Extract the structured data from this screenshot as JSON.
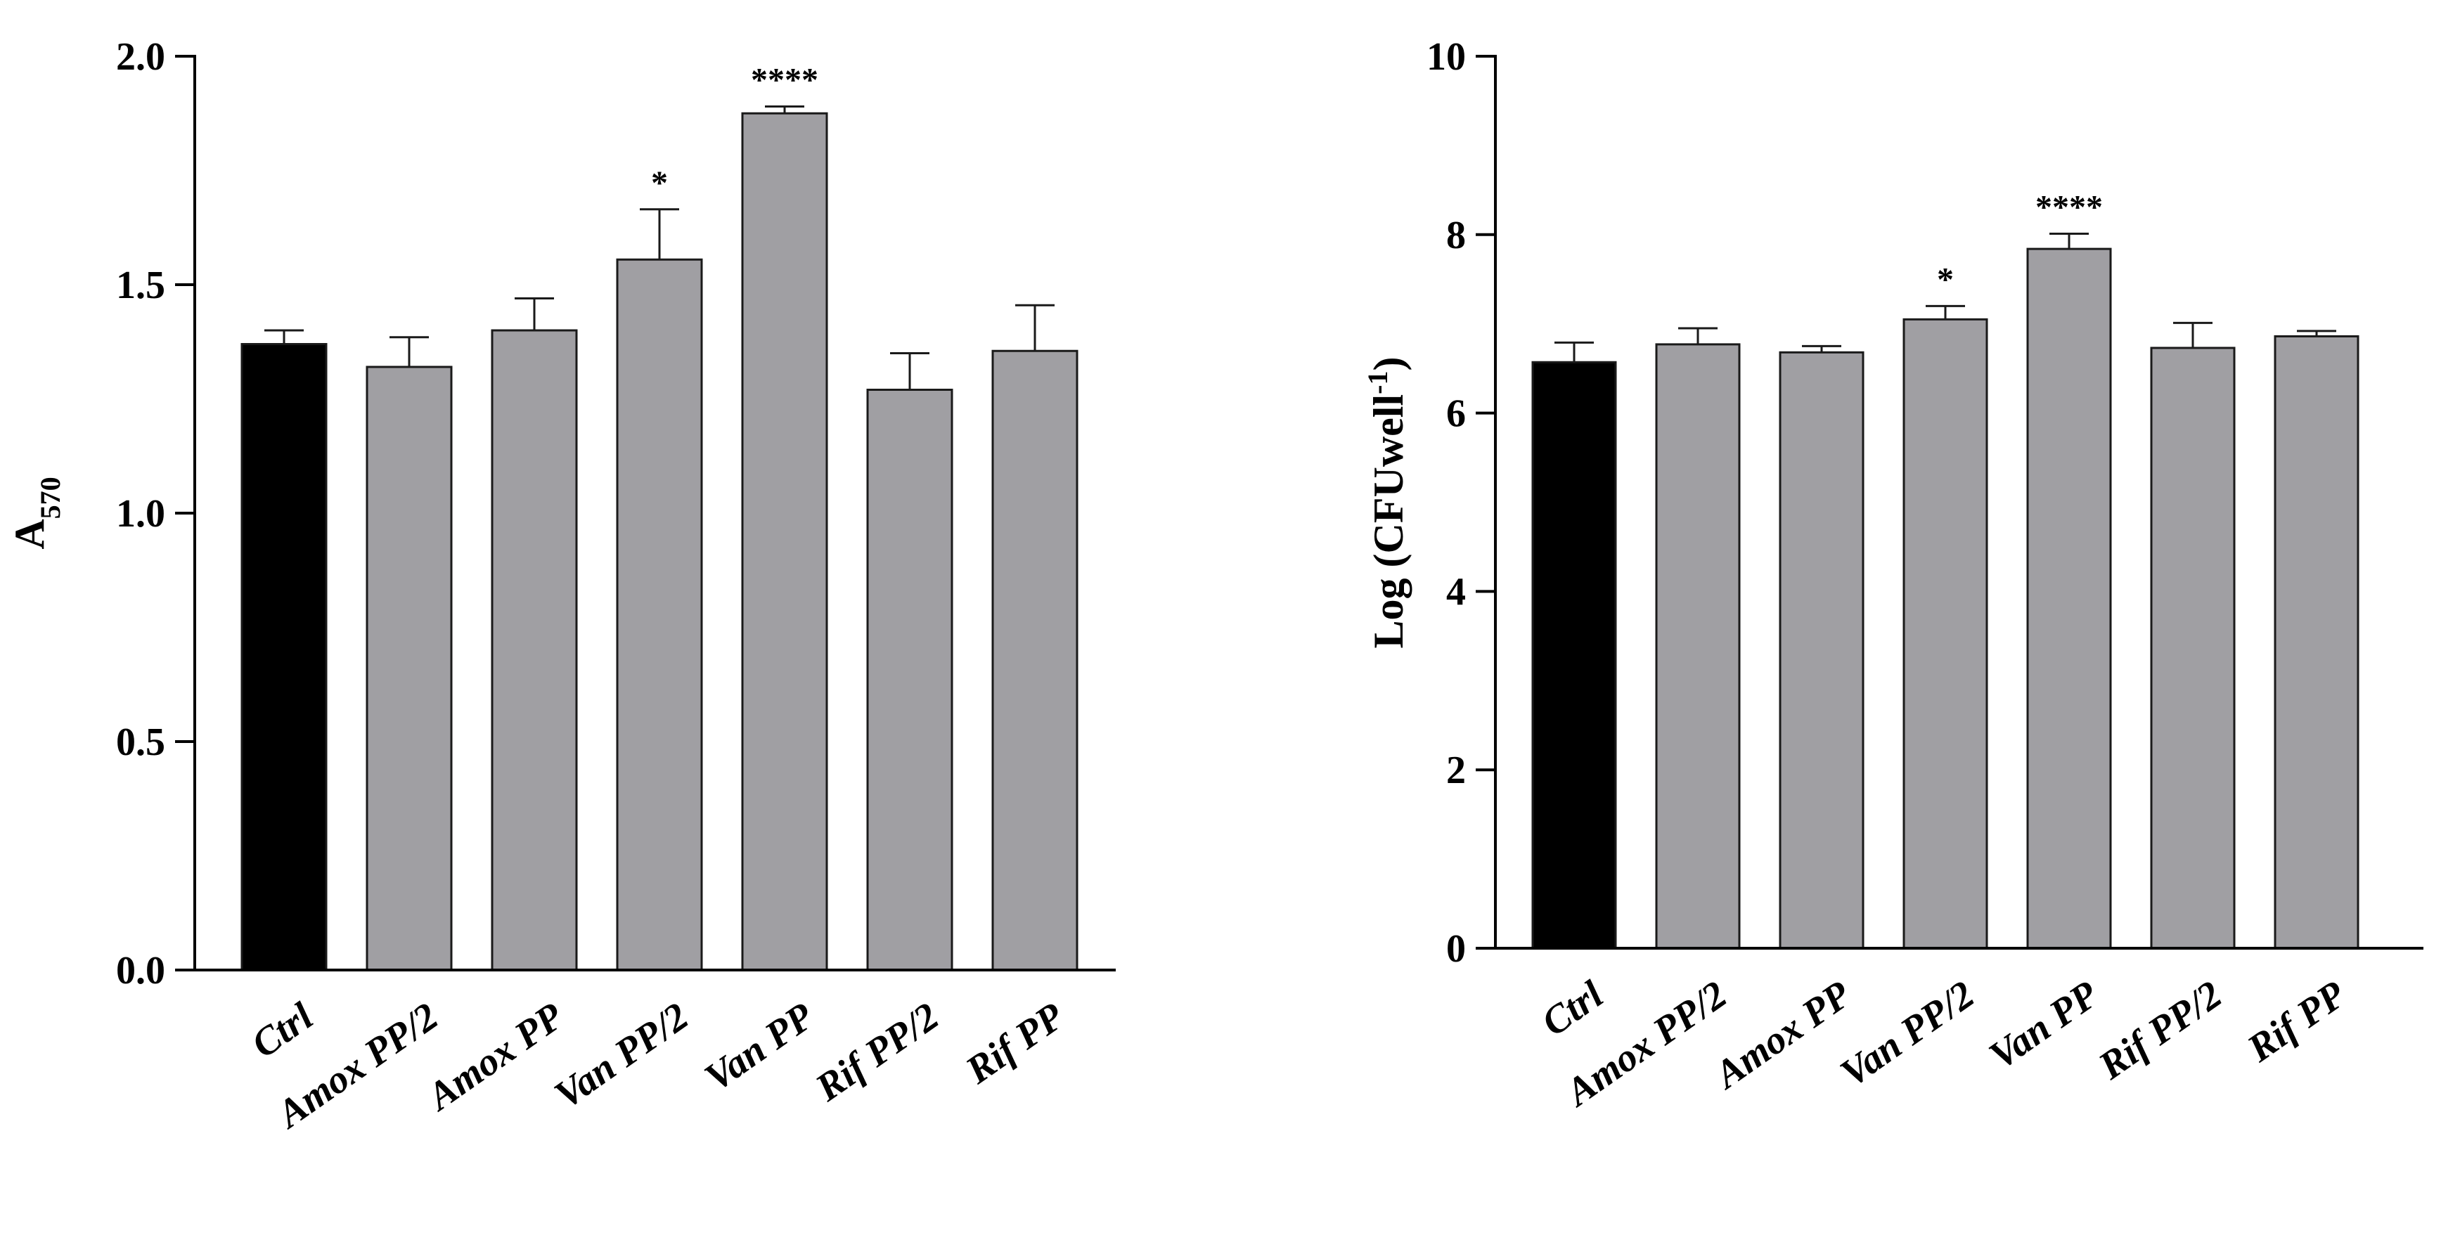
{
  "colors": {
    "control": "#000000",
    "treatment": "#a09fa3",
    "stroke": "#1a1a1a"
  },
  "chart_data": [
    {
      "type": "bar",
      "title": "",
      "xlabel": "",
      "ylabel": {
        "main": "A",
        "sub": "570"
      },
      "ylim": [
        0,
        2.0
      ],
      "yticks": [
        "0.0",
        "0.5",
        "1.0",
        "1.5",
        "2.0"
      ],
      "ytick_values": [
        0,
        0.5,
        1.0,
        1.5,
        2.0
      ],
      "categories": [
        "Ctrl",
        "Amox PP/2",
        "Amox PP",
        "Van PP/2",
        "Van PP",
        "Rif PP/2",
        "Rif PP"
      ],
      "values": [
        1.37,
        1.32,
        1.4,
        1.555,
        1.875,
        1.27,
        1.355
      ],
      "errors": [
        0.03,
        0.065,
        0.07,
        0.11,
        0.015,
        0.08,
        0.1
      ],
      "significance": [
        "",
        "",
        "",
        "*",
        "****",
        "",
        ""
      ]
    },
    {
      "type": "bar",
      "title": "",
      "xlabel": "",
      "ylabel": {
        "main": "Log (CFUwell",
        "sup": "-1",
        "tail": ")"
      },
      "ylim": [
        0,
        10
      ],
      "yticks": [
        "0",
        "2",
        "4",
        "6",
        "8",
        "10"
      ],
      "ytick_values": [
        0,
        2,
        4,
        6,
        8,
        10
      ],
      "categories": [
        "Ctrl",
        "Amox PP/2",
        "Amox PP",
        "Van PP/2",
        "Van PP",
        "Rif PP/2",
        "Rif PP"
      ],
      "values": [
        6.57,
        6.77,
        6.68,
        7.05,
        7.84,
        6.73,
        6.86
      ],
      "errors": [
        0.22,
        0.18,
        0.07,
        0.15,
        0.17,
        0.28,
        0.06
      ],
      "significance": [
        "",
        "",
        "",
        "*",
        "****",
        "",
        ""
      ]
    }
  ]
}
